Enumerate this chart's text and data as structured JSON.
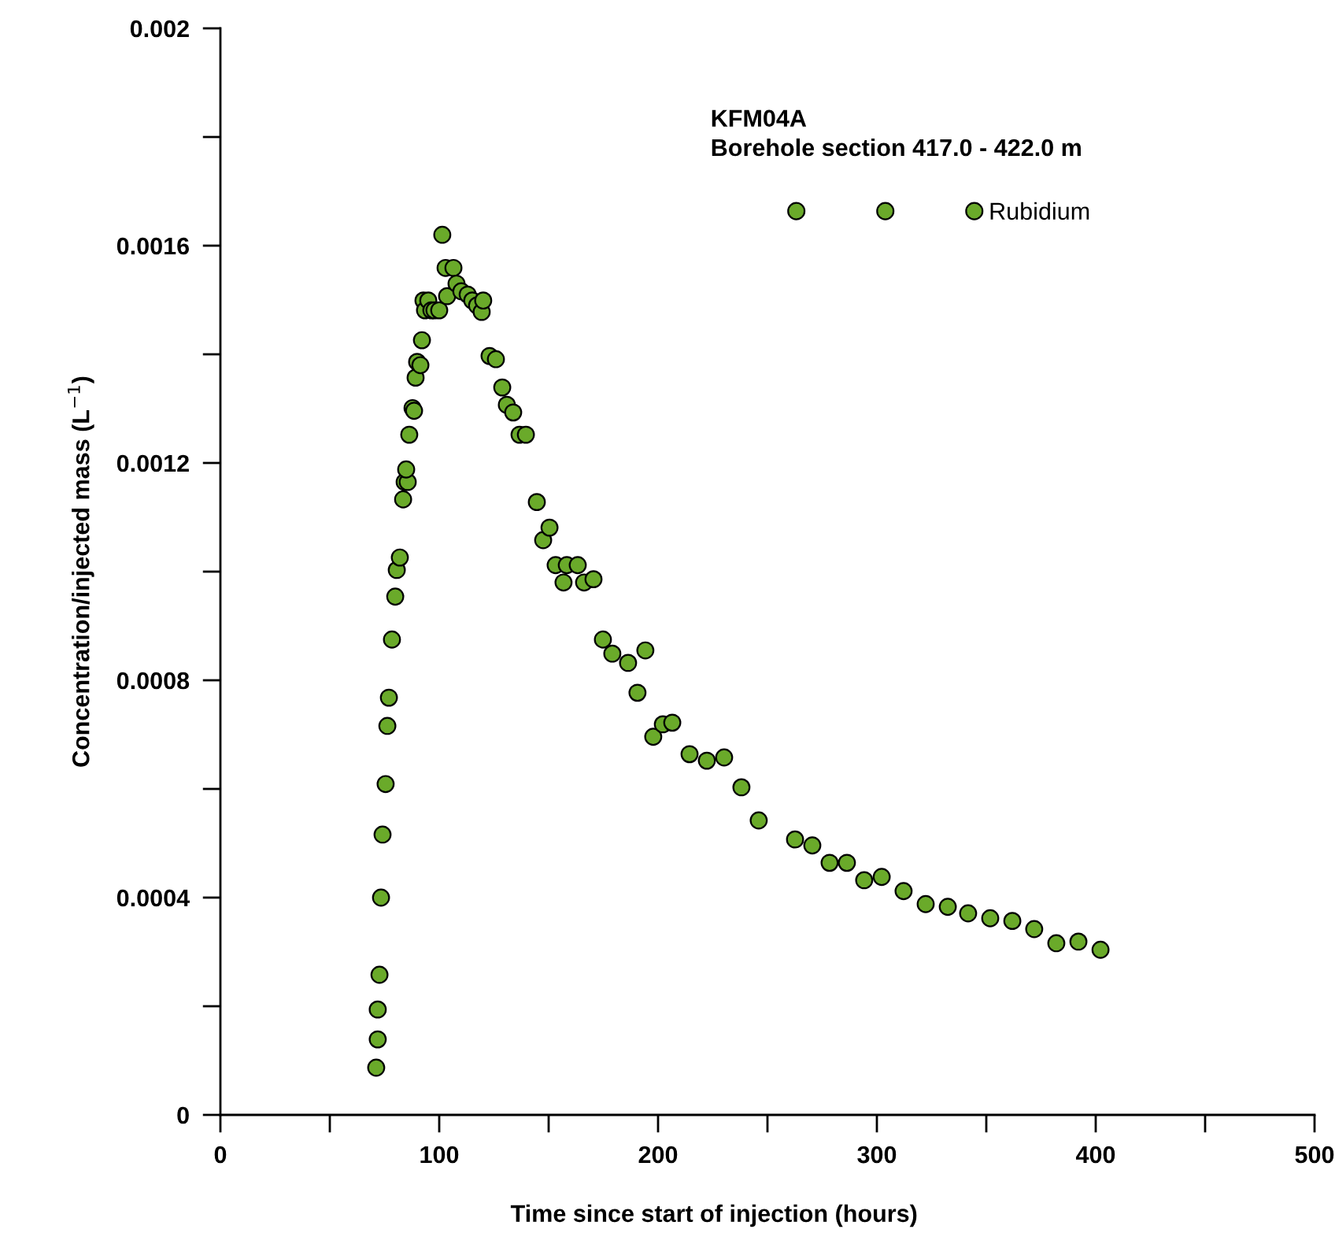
{
  "chart_data": {
    "type": "scatter",
    "title": "KFM04A",
    "subtitle": "Borehole section 417.0 - 422.0 m",
    "xlabel": "Time since start of injection (hours)",
    "ylabel": "Concentration/injected mass (L$^{−1}$)",
    "series": [
      {
        "name": "Rubidium",
        "color": "#6aaa2a",
        "x": [
          71.2,
          71.9,
          71.9,
          72.7,
          73.4,
          74.1,
          75.5,
          76.3,
          77.0,
          78.4,
          79.9,
          80.6,
          82.0,
          83.5,
          84.2,
          85.6,
          84.9,
          86.3,
          87.8,
          88.5,
          89.2,
          89.9,
          91.4,
          92.1,
          92.8,
          93.5,
          95.0,
          96.4,
          97.8,
          100,
          101.4,
          102.9,
          103.6,
          106.5,
          107.9,
          110.1,
          113.0,
          115.1,
          117.3,
          119.4,
          120.1,
          123.0,
          125.9,
          128.8,
          130.9,
          133.8,
          136.7,
          139.6,
          144.6,
          147.5,
          150.4,
          153.2,
          156.8,
          158.3,
          163.3,
          166.2,
          170.5,
          174.8,
          179.1,
          186.3,
          190.6,
          194.2,
          197.8,
          202.2,
          206.5,
          214.4,
          222.3,
          230.2,
          238.1,
          246.0,
          262.6,
          270.5,
          278.4,
          286.3,
          294.2,
          302.2,
          312.2,
          322.3,
          332.4,
          341.7,
          351.8,
          361.9,
          371.9,
          382.0,
          392.1,
          402.2
        ],
        "values": [
          8.7e-05,
          0.000139,
          0.000194,
          0.000258,
          0.0004,
          0.000516,
          0.000609,
          0.000716,
          0.000768,
          0.000875,
          0.000954,
          0.001003,
          0.001026,
          0.001133,
          0.001165,
          0.001165,
          0.001188,
          0.001252,
          0.001301,
          0.001296,
          0.001357,
          0.001386,
          0.00138,
          0.001426,
          0.001499,
          0.001481,
          0.001499,
          0.001481,
          0.001481,
          0.001481,
          0.00162,
          0.001559,
          0.001507,
          0.001559,
          0.00153,
          0.001516,
          0.00151,
          0.001499,
          0.00149,
          0.001478,
          0.001499,
          0.001397,
          0.001391,
          0.001339,
          0.001307,
          0.001293,
          0.001252,
          0.001252,
          0.001128,
          0.001058,
          0.001081,
          0.001012,
          0.00098,
          0.001012,
          0.001012,
          0.00098,
          0.000986,
          0.000875,
          0.000849,
          0.000832,
          0.000777,
          0.000855,
          0.000696,
          0.000719,
          0.000722,
          0.000664,
          0.000652,
          0.000658,
          0.000603,
          0.000542,
          0.000507,
          0.000496,
          0.000464,
          0.000464,
          0.000432,
          0.000438,
          0.000412,
          0.000388,
          0.000383,
          0.000371,
          0.000362,
          0.000357,
          0.000342,
          0.000316,
          0.000319,
          0.000304
        ]
      }
    ],
    "xlim": [
      0,
      500
    ],
    "ylim": [
      0,
      0.002
    ],
    "xticks": [
      0,
      {
        "value": 50,
        "label": null
      },
      100,
      {
        "value": 150,
        "label": null
      },
      200,
      {
        "value": 250,
        "label": null
      },
      300,
      {
        "value": 350,
        "label": null
      },
      400,
      {
        "value": 450,
        "label": null
      },
      500
    ],
    "yticks": [
      0,
      {
        "value": 0.0002,
        "label": null
      },
      0.0004,
      {
        "value": 0.0006,
        "label": null
      },
      0.0008,
      {
        "value": 0.001,
        "label": null
      },
      0.0012,
      {
        "value": 0.0014,
        "label": null
      },
      0.0016,
      {
        "value": 0.0018,
        "label": null
      },
      0.002
    ],
    "marker": "circle",
    "grid": false,
    "legend": "top right"
  }
}
